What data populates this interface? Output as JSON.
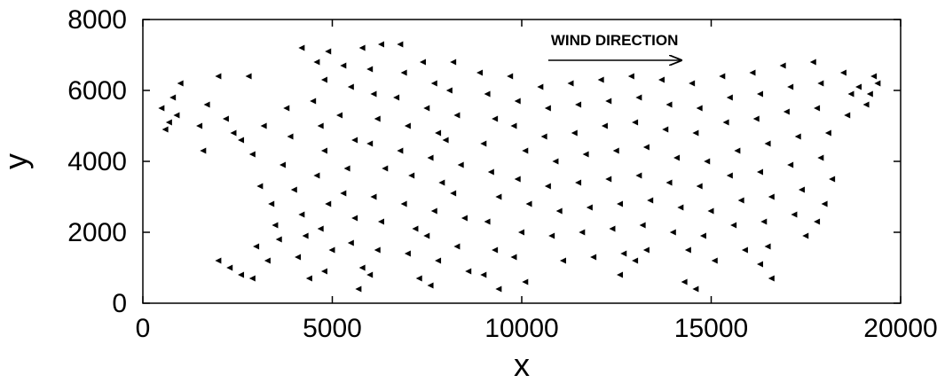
{
  "chart_data": {
    "type": "scatter",
    "xlabel": "x",
    "ylabel": "y",
    "xlim": [
      0,
      20000
    ],
    "ylim": [
      0,
      8000
    ],
    "xticks": [
      "0",
      "5000",
      "10000",
      "15000",
      "20000"
    ],
    "yticks": [
      "0",
      "2000",
      "4000",
      "6000",
      "8000"
    ],
    "grid": false,
    "marker": "left-pointing triangle",
    "marker_color": "#000000",
    "annotation": {
      "text": "WIND DIRECTION",
      "arrow_from": [
        10700,
        6850
      ],
      "arrow_to": [
        14200,
        6850
      ]
    },
    "series": [
      {
        "points": [
          [
            500,
            5500
          ],
          [
            800,
            5800
          ],
          [
            1000,
            6200
          ],
          [
            600,
            4900
          ],
          [
            900,
            5300
          ],
          [
            700,
            5100
          ],
          [
            1500,
            5000
          ],
          [
            1700,
            5600
          ],
          [
            1600,
            4300
          ],
          [
            2000,
            6400
          ],
          [
            2200,
            5200
          ],
          [
            2400,
            4800
          ],
          [
            2000,
            1200
          ],
          [
            2300,
            1000
          ],
          [
            2600,
            800
          ],
          [
            2900,
            700
          ],
          [
            2800,
            6400
          ],
          [
            2600,
            4600
          ],
          [
            2900,
            4200
          ],
          [
            3200,
            5000
          ],
          [
            3100,
            3300
          ],
          [
            3400,
            2800
          ],
          [
            3500,
            2200
          ],
          [
            3600,
            1800
          ],
          [
            3000,
            1600
          ],
          [
            3300,
            1200
          ],
          [
            3800,
            5500
          ],
          [
            3900,
            4700
          ],
          [
            3700,
            3900
          ],
          [
            4000,
            3200
          ],
          [
            4200,
            2500
          ],
          [
            4300,
            1900
          ],
          [
            4100,
            1300
          ],
          [
            4400,
            700
          ],
          [
            4200,
            7200
          ],
          [
            4600,
            6800
          ],
          [
            4800,
            6300
          ],
          [
            4900,
            7100
          ],
          [
            4500,
            5700
          ],
          [
            4700,
            5000
          ],
          [
            4800,
            4300
          ],
          [
            4600,
            3600
          ],
          [
            4900,
            2800
          ],
          [
            4700,
            2100
          ],
          [
            5000,
            1500
          ],
          [
            4800,
            900
          ],
          [
            5300,
            6700
          ],
          [
            5500,
            6100
          ],
          [
            5200,
            5300
          ],
          [
            5600,
            4600
          ],
          [
            5400,
            3800
          ],
          [
            5300,
            3100
          ],
          [
            5600,
            2400
          ],
          [
            5500,
            1700
          ],
          [
            5800,
            1000
          ],
          [
            5700,
            400
          ],
          [
            5800,
            7200
          ],
          [
            6000,
            6600
          ],
          [
            6300,
            7300
          ],
          [
            6100,
            5900
          ],
          [
            6200,
            5200
          ],
          [
            6000,
            4500
          ],
          [
            6400,
            3800
          ],
          [
            6100,
            3000
          ],
          [
            6300,
            2300
          ],
          [
            6200,
            1500
          ],
          [
            6000,
            800
          ],
          [
            6800,
            7300
          ],
          [
            6900,
            6500
          ],
          [
            6700,
            5800
          ],
          [
            7000,
            5000
          ],
          [
            6800,
            4300
          ],
          [
            7100,
            3600
          ],
          [
            6900,
            2800
          ],
          [
            7200,
            2100
          ],
          [
            7000,
            1400
          ],
          [
            7300,
            700
          ],
          [
            7400,
            6800
          ],
          [
            7700,
            6200
          ],
          [
            7500,
            5500
          ],
          [
            7800,
            4800
          ],
          [
            7600,
            4100
          ],
          [
            7900,
            3400
          ],
          [
            7700,
            2600
          ],
          [
            7500,
            1900
          ],
          [
            7800,
            1200
          ],
          [
            7600,
            500
          ],
          [
            8200,
            6800
          ],
          [
            8100,
            6000
          ],
          [
            8300,
            5300
          ],
          [
            8000,
            4600
          ],
          [
            8400,
            3900
          ],
          [
            8200,
            3100
          ],
          [
            8500,
            2400
          ],
          [
            8300,
            1600
          ],
          [
            8600,
            900
          ],
          [
            8900,
            6500
          ],
          [
            9100,
            5900
          ],
          [
            9300,
            5200
          ],
          [
            9000,
            4500
          ],
          [
            9200,
            3700
          ],
          [
            9400,
            3000
          ],
          [
            9100,
            2300
          ],
          [
            9300,
            1500
          ],
          [
            9000,
            800
          ],
          [
            9400,
            400
          ],
          [
            9700,
            6400
          ],
          [
            9900,
            5700
          ],
          [
            9800,
            5000
          ],
          [
            10100,
            4300
          ],
          [
            9900,
            3500
          ],
          [
            10200,
            2800
          ],
          [
            10000,
            2000
          ],
          [
            9800,
            1300
          ],
          [
            10100,
            600
          ],
          [
            10500,
            6100
          ],
          [
            10700,
            5500
          ],
          [
            10600,
            4700
          ],
          [
            10900,
            4000
          ],
          [
            10700,
            3300
          ],
          [
            11000,
            2600
          ],
          [
            10800,
            1900
          ],
          [
            11100,
            1200
          ],
          [
            11300,
            6200
          ],
          [
            11500,
            5600
          ],
          [
            11400,
            4800
          ],
          [
            11700,
            4200
          ],
          [
            11500,
            3400
          ],
          [
            11800,
            2700
          ],
          [
            11600,
            2000
          ],
          [
            11900,
            1300
          ],
          [
            12100,
            6300
          ],
          [
            12300,
            5700
          ],
          [
            12200,
            5000
          ],
          [
            12500,
            4300
          ],
          [
            12300,
            3500
          ],
          [
            12600,
            2800
          ],
          [
            12400,
            2100
          ],
          [
            12700,
            1400
          ],
          [
            12600,
            800
          ],
          [
            12900,
            6400
          ],
          [
            13100,
            5800
          ],
          [
            13000,
            5100
          ],
          [
            13300,
            4400
          ],
          [
            13100,
            3600
          ],
          [
            13400,
            2900
          ],
          [
            13200,
            2200
          ],
          [
            13300,
            1500
          ],
          [
            13000,
            1200
          ],
          [
            13700,
            6300
          ],
          [
            13900,
            5600
          ],
          [
            13800,
            4900
          ],
          [
            14100,
            4100
          ],
          [
            13900,
            3400
          ],
          [
            14200,
            2700
          ],
          [
            14000,
            2000
          ],
          [
            14400,
            1500
          ],
          [
            14300,
            600
          ],
          [
            14600,
            400
          ],
          [
            14500,
            6200
          ],
          [
            14700,
            5500
          ],
          [
            14600,
            4800
          ],
          [
            14900,
            4000
          ],
          [
            14700,
            3300
          ],
          [
            15000,
            2600
          ],
          [
            14800,
            1900
          ],
          [
            15100,
            1200
          ],
          [
            15300,
            6400
          ],
          [
            15500,
            5800
          ],
          [
            15400,
            5100
          ],
          [
            15700,
            4300
          ],
          [
            15500,
            3600
          ],
          [
            15800,
            2900
          ],
          [
            15600,
            2200
          ],
          [
            15900,
            1500
          ],
          [
            16100,
            6500
          ],
          [
            16300,
            5900
          ],
          [
            16200,
            5200
          ],
          [
            16500,
            4500
          ],
          [
            16300,
            3700
          ],
          [
            16600,
            3000
          ],
          [
            16400,
            2300
          ],
          [
            16500,
            1600
          ],
          [
            16300,
            1100
          ],
          [
            16600,
            700
          ],
          [
            16900,
            6700
          ],
          [
            17100,
            6100
          ],
          [
            17000,
            5400
          ],
          [
            17300,
            4700
          ],
          [
            17100,
            3900
          ],
          [
            17400,
            3200
          ],
          [
            17200,
            2500
          ],
          [
            17500,
            1900
          ],
          [
            17700,
            6800
          ],
          [
            17900,
            6200
          ],
          [
            17800,
            5500
          ],
          [
            18100,
            4800
          ],
          [
            17900,
            4100
          ],
          [
            18200,
            3500
          ],
          [
            18000,
            2800
          ],
          [
            17800,
            2300
          ],
          [
            18500,
            6500
          ],
          [
            18700,
            5900
          ],
          [
            18600,
            5300
          ],
          [
            18900,
            6100
          ],
          [
            19100,
            5600
          ],
          [
            19300,
            6400
          ],
          [
            19200,
            5900
          ],
          [
            19400,
            6200
          ]
        ]
      }
    ]
  }
}
